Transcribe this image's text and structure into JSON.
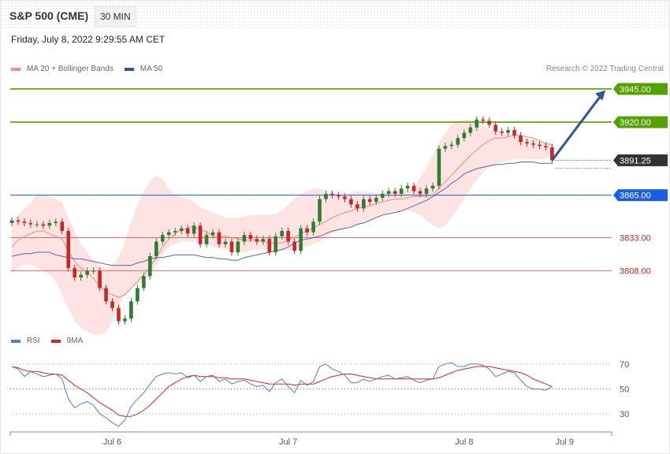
{
  "header": {
    "symbol": "S&P 500 (CME)",
    "timeframe": "30 MIN",
    "datetime": "Friday, July 8, 2022 9:29:55 AM CET"
  },
  "legend": {
    "ma20_label": "MA 20 + Bollinger Bands",
    "ma50_label": "MA 50",
    "credit": "Research © 2022 Trading Central",
    "rsi_label": "RSI",
    "rsi9_label": "9MA"
  },
  "colors": {
    "bullish": "#2e7d32",
    "bearish": "#c62828",
    "resistance": "#52a300",
    "pivot": "#2f6fe0",
    "support": "#e86b6b",
    "ma20": "#f28b82",
    "ma50": "#5566a8",
    "band_fill": "#fde0df",
    "arrow": "#2f5597",
    "rsi": "#4f7de0",
    "rsi9": "#e02020"
  },
  "chart_data": {
    "type": "candlestick",
    "instrument": "S&P 500 (CME)",
    "timeframe": "30 MIN",
    "x_tick_labels": [
      "Jul 6",
      "Jul 7",
      "Jul 8",
      "Jul 9"
    ],
    "x_tick_positions": [
      16,
      44,
      72,
      88
    ],
    "price_range": [
      3765,
      3955
    ],
    "levels": [
      {
        "value": 3945.0,
        "label": "3945.00",
        "kind": "resistance"
      },
      {
        "value": 3920.0,
        "label": "3920.00",
        "kind": "resistance"
      },
      {
        "value": 3891.25,
        "label": "3891.25",
        "kind": "last"
      },
      {
        "value": 3865.0,
        "label": "3865.00",
        "kind": "pivot"
      },
      {
        "value": 3833.0,
        "label": "3833.00",
        "kind": "support"
      },
      {
        "value": 3808.0,
        "label": "3808.00",
        "kind": "support"
      }
    ],
    "target_arrow": {
      "from_index": 86,
      "from_price": 3891.25,
      "to_index": 94.5,
      "to_price": 3944
    },
    "closes": [
      3846,
      3845,
      3844,
      3843,
      3843,
      3842,
      3844,
      3845,
      3838,
      3810,
      3803,
      3805,
      3808,
      3808,
      3795,
      3785,
      3780,
      3770,
      3772,
      3785,
      3795,
      3804,
      3819,
      3830,
      3835,
      3837,
      3838,
      3840,
      3836,
      3842,
      3828,
      3835,
      3837,
      3828,
      3830,
      3822,
      3830,
      3835,
      3832,
      3830,
      3832,
      3822,
      3834,
      3838,
      3830,
      3823,
      3840,
      3837,
      3845,
      3862,
      3866,
      3865,
      3864,
      3862,
      3858,
      3855,
      3862,
      3860,
      3863,
      3866,
      3868,
      3866,
      3870,
      3872,
      3868,
      3866,
      3870,
      3872,
      3900,
      3902,
      3903,
      3908,
      3912,
      3916,
      3922,
      3921,
      3918,
      3913,
      3912,
      3914,
      3910,
      3905,
      3904,
      3903,
      3902,
      3901,
      3891.25
    ],
    "ma20": [
      3826,
      3831,
      3834,
      3836,
      3838,
      3838,
      3836,
      3834,
      3832,
      3823,
      3815,
      3810,
      3807,
      3802,
      3797,
      3792,
      3790,
      3788,
      3790,
      3795,
      3800,
      3805,
      3811,
      3818,
      3826,
      3832,
      3836,
      3839,
      3840,
      3842,
      3838,
      3838,
      3834,
      3834,
      3834,
      3833,
      3832,
      3831,
      3831,
      3831,
      3830,
      3829,
      3829,
      3829,
      3831,
      3833,
      3836,
      3838,
      3840,
      3843,
      3845,
      3848,
      3850,
      3852,
      3853,
      3855,
      3856,
      3857,
      3859,
      3860,
      3861,
      3862,
      3862,
      3863,
      3864,
      3864,
      3864,
      3865,
      3870,
      3875,
      3880,
      3885,
      3890,
      3895,
      3899,
      3903,
      3906,
      3908,
      3908,
      3909,
      3910,
      3910,
      3909,
      3908,
      3906,
      3904,
      3903
    ],
    "ma50": [
      3819,
      3820,
      3821,
      3821,
      3822,
      3822,
      3822,
      3820,
      3819,
      3818,
      3817,
      3817,
      3816,
      3815,
      3814,
      3813,
      3812,
      3812,
      3812,
      3812,
      3814,
      3815,
      3817,
      3818,
      3818,
      3819,
      3820,
      3820,
      3820,
      3820,
      3819,
      3818,
      3818,
      3817,
      3817,
      3816,
      3816,
      3818,
      3819,
      3820,
      3821,
      3822,
      3823,
      3824,
      3826,
      3829,
      3831,
      3832,
      3833,
      3834,
      3836,
      3838,
      3839,
      3840,
      3841,
      3843,
      3844,
      3846,
      3848,
      3850,
      3851,
      3852,
      3853,
      3855,
      3857,
      3859,
      3861,
      3864,
      3867,
      3870,
      3874,
      3877,
      3881,
      3883,
      3885,
      3886,
      3887,
      3888,
      3888,
      3889,
      3889,
      3890,
      3890,
      3890,
      3889,
      3889,
      3889
    ],
    "bollinger_upper": [
      3845,
      3850,
      3855,
      3860,
      3866,
      3866,
      3864,
      3862,
      3860,
      3848,
      3838,
      3828,
      3822,
      3816,
      3812,
      3810,
      3812,
      3818,
      3830,
      3845,
      3858,
      3868,
      3875,
      3880,
      3877,
      3870,
      3866,
      3864,
      3862,
      3860,
      3856,
      3854,
      3852,
      3850,
      3848,
      3848,
      3848,
      3849,
      3850,
      3850,
      3850,
      3850,
      3851,
      3853,
      3858,
      3862,
      3866,
      3868,
      3870,
      3870,
      3868,
      3867,
      3866,
      3866,
      3867,
      3868,
      3868,
      3867,
      3867,
      3866,
      3867,
      3868,
      3869,
      3868,
      3872,
      3878,
      3886,
      3895,
      3905,
      3912,
      3918,
      3921,
      3922,
      3922,
      3920,
      3917,
      3914,
      3913,
      3912,
      3912,
      3910,
      3909,
      3908,
      3907,
      3906,
      3905,
      3904
    ],
    "bollinger_lower": [
      3806,
      3810,
      3812,
      3813,
      3810,
      3808,
      3805,
      3800,
      3790,
      3780,
      3770,
      3765,
      3762,
      3760,
      3760,
      3762,
      3770,
      3780,
      3790,
      3795,
      3798,
      3800,
      3805,
      3812,
      3820,
      3826,
      3828,
      3830,
      3830,
      3830,
      3829,
      3828,
      3826,
      3825,
      3824,
      3822,
      3822,
      3822,
      3823,
      3824,
      3824,
      3823,
      3823,
      3823,
      3823,
      3824,
      3825,
      3826,
      3828,
      3830,
      3833,
      3836,
      3838,
      3840,
      3842,
      3843,
      3845,
      3846,
      3848,
      3850,
      3852,
      3853,
      3853,
      3854,
      3852,
      3850,
      3846,
      3842,
      3840,
      3842,
      3848,
      3855,
      3862,
      3870,
      3876,
      3882,
      3886,
      3888,
      3890,
      3891,
      3892,
      3892,
      3892,
      3892,
      3892,
      3893,
      3893
    ],
    "rsi": {
      "levels": [
        70,
        50,
        30
      ],
      "range": [
        20,
        80
      ],
      "rsi": [
        68,
        66,
        60,
        64,
        62,
        60,
        61,
        62,
        58,
        42,
        35,
        38,
        40,
        37,
        30,
        27,
        23,
        20,
        25,
        36,
        42,
        47,
        54,
        60,
        62,
        63,
        62,
        63,
        59,
        61,
        56,
        60,
        61,
        56,
        58,
        54,
        56,
        57,
        54,
        52,
        53,
        48,
        55,
        58,
        52,
        47,
        57,
        53,
        56,
        68,
        70,
        66,
        64,
        61,
        55,
        55,
        58,
        56,
        58,
        60,
        61,
        58,
        59,
        60,
        57,
        55,
        57,
        58,
        68,
        70,
        71,
        68,
        68,
        70,
        70,
        69,
        66,
        60,
        62,
        64,
        63,
        57,
        52,
        50,
        50,
        49,
        52
      ],
      "rsi9": [
        68,
        67,
        65,
        64,
        64,
        63,
        62,
        62,
        61,
        57,
        53,
        50,
        47,
        43,
        39,
        36,
        33,
        29,
        28,
        28,
        30,
        33,
        37,
        42,
        47,
        52,
        55,
        58,
        60,
        61,
        60,
        60,
        60,
        59,
        59,
        58,
        58,
        58,
        57,
        56,
        55,
        54,
        54,
        54,
        54,
        53,
        54,
        54,
        54,
        56,
        58,
        60,
        61,
        62,
        62,
        61,
        60,
        59,
        58,
        58,
        58,
        58,
        58,
        58,
        58,
        58,
        58,
        58,
        59,
        61,
        63,
        65,
        66,
        67,
        68,
        68,
        68,
        67,
        66,
        65,
        64,
        63,
        61,
        58,
        56,
        54,
        52
      ]
    }
  }
}
